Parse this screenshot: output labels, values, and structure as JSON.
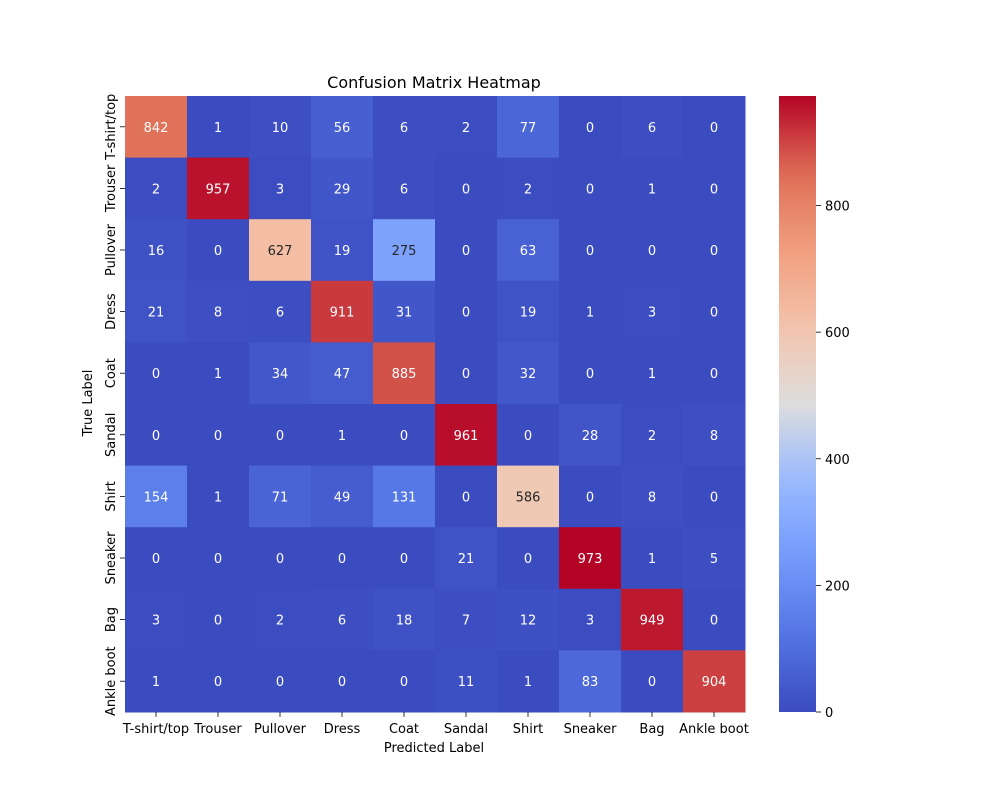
{
  "chart_data": {
    "type": "heatmap",
    "title": "Confusion Matrix Heatmap",
    "xlabel": "Predicted Label",
    "ylabel": "True Label",
    "x_categories": [
      "T-shirt/top",
      "Trouser",
      "Pullover",
      "Dress",
      "Coat",
      "Sandal",
      "Shirt",
      "Sneaker",
      "Bag",
      "Ankle boot"
    ],
    "y_categories": [
      "T-shirt/top",
      "Trouser",
      "Pullover",
      "Dress",
      "Coat",
      "Sandal",
      "Shirt",
      "Sneaker",
      "Bag",
      "Ankle boot"
    ],
    "values": [
      [
        842,
        1,
        10,
        56,
        6,
        2,
        77,
        0,
        6,
        0
      ],
      [
        2,
        957,
        3,
        29,
        6,
        0,
        2,
        0,
        1,
        0
      ],
      [
        16,
        0,
        627,
        19,
        275,
        0,
        63,
        0,
        0,
        0
      ],
      [
        21,
        8,
        6,
        911,
        31,
        0,
        19,
        1,
        3,
        0
      ],
      [
        0,
        1,
        34,
        47,
        885,
        0,
        32,
        0,
        1,
        0
      ],
      [
        0,
        0,
        0,
        1,
        0,
        961,
        0,
        28,
        2,
        8
      ],
      [
        154,
        1,
        71,
        49,
        131,
        0,
        586,
        0,
        8,
        0
      ],
      [
        0,
        0,
        0,
        0,
        0,
        21,
        0,
        973,
        1,
        5
      ],
      [
        3,
        0,
        2,
        6,
        18,
        7,
        12,
        3,
        949,
        0
      ],
      [
        1,
        0,
        0,
        0,
        0,
        11,
        1,
        83,
        0,
        904
      ]
    ],
    "colormap": "coolwarm",
    "value_range": [
      0,
      973
    ],
    "colorbar_ticks": [
      0,
      200,
      400,
      600,
      800
    ],
    "annotate": true,
    "grid": false
  }
}
